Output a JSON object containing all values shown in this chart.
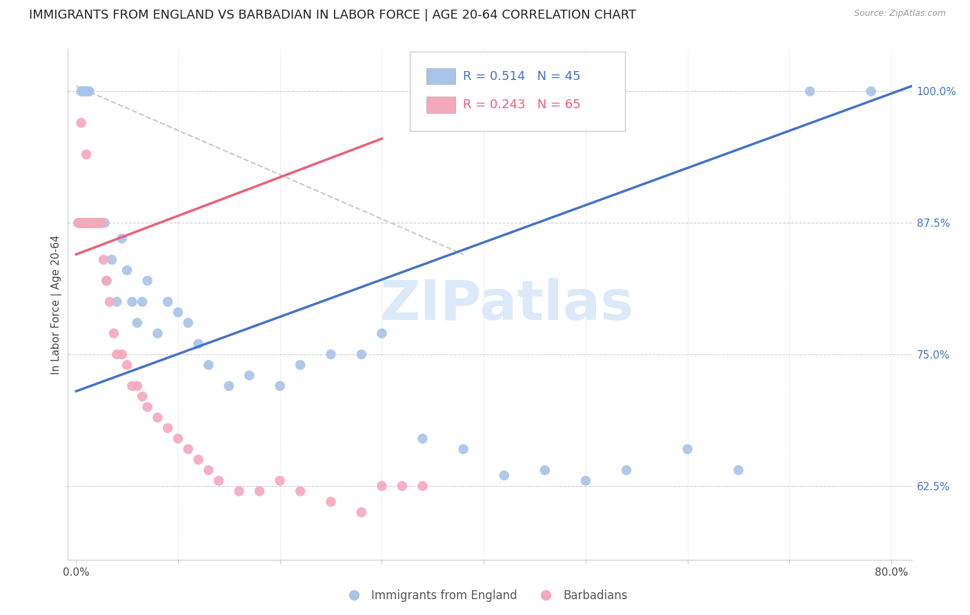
{
  "title": "IMMIGRANTS FROM ENGLAND VS BARBADIAN IN LABOR FORCE | AGE 20-64 CORRELATION CHART",
  "source": "Source: ZipAtlas.com",
  "ylabel": "In Labor Force | Age 20-64",
  "xlim": [
    -0.008,
    0.82
  ],
  "ylim": [
    0.555,
    1.04
  ],
  "xticks": [
    0.0,
    0.1,
    0.2,
    0.3,
    0.4,
    0.5,
    0.6,
    0.7,
    0.8
  ],
  "xticklabels": [
    "0.0%",
    "",
    "",
    "",
    "",
    "",
    "",
    "",
    "80.0%"
  ],
  "yticks_right": [
    0.625,
    0.75,
    0.875,
    1.0
  ],
  "ytick_labels_right": [
    "62.5%",
    "75.0%",
    "87.5%",
    "100.0%"
  ],
  "blue_color": "#a8c4e8",
  "pink_color": "#f5a8bc",
  "blue_line_color": "#4472c4",
  "pink_line_color": "#e8607a",
  "right_axis_color": "#4472c4",
  "grid_color": "#cccccc",
  "ref_line_color": "#c8c8c8",
  "watermark_color": "#dce9f8",
  "blue_x": [
    0.005,
    0.007,
    0.008,
    0.01,
    0.012,
    0.013,
    0.014,
    0.016,
    0.018,
    0.02,
    0.022,
    0.025,
    0.028,
    0.03,
    0.035,
    0.04,
    0.045,
    0.05,
    0.055,
    0.06,
    0.065,
    0.07,
    0.08,
    0.09,
    0.1,
    0.11,
    0.12,
    0.13,
    0.15,
    0.17,
    0.2,
    0.22,
    0.25,
    0.28,
    0.3,
    0.34,
    0.38,
    0.42,
    0.46,
    0.5,
    0.54,
    0.6,
    0.65,
    0.72,
    0.78
  ],
  "blue_y": [
    1.0,
    1.0,
    1.0,
    1.0,
    1.0,
    1.0,
    0.875,
    0.875,
    0.875,
    0.875,
    0.875,
    0.875,
    0.875,
    0.82,
    0.84,
    0.8,
    0.86,
    0.83,
    0.8,
    0.78,
    0.8,
    0.82,
    0.77,
    0.8,
    0.79,
    0.78,
    0.76,
    0.74,
    0.72,
    0.73,
    0.72,
    0.74,
    0.75,
    0.75,
    0.77,
    0.67,
    0.66,
    0.635,
    0.64,
    0.63,
    0.64,
    0.66,
    0.64,
    1.0,
    1.0
  ],
  "pink_x": [
    0.002,
    0.003,
    0.004,
    0.005,
    0.005,
    0.006,
    0.006,
    0.007,
    0.007,
    0.008,
    0.008,
    0.008,
    0.009,
    0.009,
    0.009,
    0.01,
    0.01,
    0.01,
    0.011,
    0.011,
    0.012,
    0.012,
    0.013,
    0.013,
    0.014,
    0.014,
    0.015,
    0.016,
    0.017,
    0.018,
    0.019,
    0.02,
    0.021,
    0.022,
    0.023,
    0.025,
    0.027,
    0.03,
    0.033,
    0.037,
    0.04,
    0.045,
    0.05,
    0.055,
    0.06,
    0.065,
    0.07,
    0.08,
    0.09,
    0.1,
    0.11,
    0.12,
    0.13,
    0.14,
    0.16,
    0.18,
    0.2,
    0.22,
    0.25,
    0.28,
    0.3,
    0.32,
    0.34,
    0.005,
    0.01
  ],
  "pink_y": [
    0.875,
    0.875,
    0.875,
    0.875,
    0.875,
    0.875,
    0.875,
    0.875,
    0.875,
    0.875,
    0.875,
    0.875,
    0.875,
    0.875,
    0.875,
    0.875,
    0.875,
    0.875,
    0.875,
    0.875,
    0.875,
    0.875,
    0.875,
    0.875,
    0.875,
    0.875,
    0.875,
    0.875,
    0.875,
    0.875,
    0.875,
    0.875,
    0.875,
    0.875,
    0.875,
    0.875,
    0.84,
    0.82,
    0.8,
    0.77,
    0.75,
    0.75,
    0.74,
    0.72,
    0.72,
    0.71,
    0.7,
    0.69,
    0.68,
    0.67,
    0.66,
    0.65,
    0.64,
    0.63,
    0.62,
    0.62,
    0.63,
    0.62,
    0.61,
    0.6,
    0.625,
    0.625,
    0.625,
    0.97,
    0.94
  ],
  "blue_line_x": [
    0.0,
    0.82
  ],
  "blue_line_y": [
    0.715,
    1.005
  ],
  "pink_line_x": [
    0.0,
    0.3
  ],
  "pink_line_y": [
    0.845,
    0.955
  ],
  "ref_line_x": [
    0.0,
    0.38
  ],
  "ref_line_y": [
    1.005,
    0.845
  ],
  "watermark": "ZIPatlas",
  "title_fontsize": 13,
  "axis_label_fontsize": 11,
  "tick_fontsize": 11,
  "legend_fontsize": 13
}
